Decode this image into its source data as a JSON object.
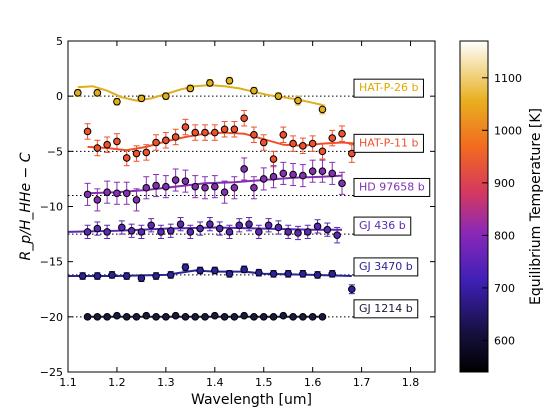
{
  "chart_data": {
    "type": "scatter",
    "xlabel": "Wavelength [um]",
    "ylabel": "R_p/H_HHe − C",
    "xlim": [
      1.1,
      1.85
    ],
    "ylim": [
      -25,
      5
    ],
    "x_ticks": [
      "1.1",
      "1.2",
      "1.3",
      "1.4",
      "1.5",
      "1.6",
      "1.7",
      "1.8"
    ],
    "y_ticks": [
      "5",
      "0",
      "−5",
      "−10",
      "−15",
      "−20",
      "−25"
    ],
    "grid": false,
    "colorbar": {
      "label": "Equilibrium Temperature [K]",
      "range": [
        540,
        1170
      ],
      "ticks": [
        "600",
        "700",
        "800",
        "900",
        "1000",
        "1100"
      ]
    },
    "series": [
      {
        "name": "HAT-P-26 b",
        "color": "#dfb01c",
        "label_color": "#e0a800",
        "baseline": 0,
        "x": [
          1.12,
          1.16,
          1.2,
          1.25,
          1.3,
          1.35,
          1.39,
          1.43,
          1.48,
          1.53,
          1.57,
          1.62
        ],
        "y": [
          0.3,
          0.3,
          -0.5,
          -0.2,
          0.0,
          0.7,
          1.2,
          1.4,
          0.5,
          0.0,
          -0.4,
          -1.2
        ],
        "err": [
          0.3,
          0.3,
          0.3,
          0.3,
          0.3,
          0.3,
          0.3,
          0.3,
          0.3,
          0.3,
          0.4,
          0.4
        ],
        "model_x": [
          1.12,
          1.15,
          1.18,
          1.21,
          1.24,
          1.27,
          1.3,
          1.33,
          1.36,
          1.39,
          1.42,
          1.45,
          1.48,
          1.51,
          1.54,
          1.57,
          1.6,
          1.62
        ],
        "model_y": [
          0.8,
          0.9,
          0.5,
          -0.1,
          -0.4,
          -0.2,
          0.2,
          0.6,
          0.9,
          1.0,
          0.9,
          0.7,
          0.4,
          0.1,
          -0.1,
          -0.3,
          -0.6,
          -0.8
        ]
      },
      {
        "name": "HAT-P-11 b",
        "color": "#f0502c",
        "label_color": "#f0502c",
        "baseline": -5,
        "x": [
          1.14,
          1.16,
          1.18,
          1.2,
          1.22,
          1.24,
          1.26,
          1.28,
          1.3,
          1.32,
          1.34,
          1.36,
          1.38,
          1.4,
          1.42,
          1.44,
          1.46,
          1.48,
          1.5,
          1.52,
          1.54,
          1.56,
          1.58,
          1.6,
          1.62,
          1.64,
          1.66,
          1.68
        ],
        "y": [
          -3.2,
          -4.7,
          -4.4,
          -4.1,
          -5.6,
          -5.2,
          -5.1,
          -4.2,
          -4.0,
          -3.7,
          -2.8,
          -3.3,
          -3.3,
          -3.3,
          -3.0,
          -3.0,
          -2.0,
          -3.5,
          -4.2,
          -5.7,
          -3.5,
          -4.3,
          -4.5,
          -4.3,
          -5.0,
          -3.8,
          -3.4,
          -5.2
        ],
        "err": [
          0.7,
          0.7,
          0.7,
          0.7,
          0.7,
          0.7,
          0.7,
          0.7,
          0.7,
          0.7,
          0.7,
          0.7,
          0.7,
          0.7,
          0.7,
          0.7,
          0.7,
          0.7,
          0.7,
          0.7,
          0.7,
          0.7,
          0.7,
          0.7,
          0.7,
          0.7,
          0.7,
          0.8
        ],
        "model_x": [
          1.14,
          1.18,
          1.22,
          1.26,
          1.3,
          1.34,
          1.38,
          1.42,
          1.46,
          1.5,
          1.54,
          1.58,
          1.62,
          1.66,
          1.69
        ],
        "model_y": [
          -4.6,
          -4.7,
          -4.9,
          -4.6,
          -4.1,
          -3.7,
          -3.4,
          -3.3,
          -3.4,
          -3.9,
          -4.4,
          -4.5,
          -4.3,
          -4.2,
          -4.3
        ]
      },
      {
        "name": "HD 97658 b",
        "color": "#8530b4",
        "label_color": "#8530b4",
        "baseline": -9,
        "x": [
          1.14,
          1.16,
          1.18,
          1.2,
          1.22,
          1.24,
          1.26,
          1.28,
          1.3,
          1.32,
          1.34,
          1.36,
          1.38,
          1.4,
          1.42,
          1.44,
          1.46,
          1.48,
          1.5,
          1.52,
          1.54,
          1.56,
          1.58,
          1.6,
          1.62,
          1.64,
          1.66
        ],
        "y": [
          -8.9,
          -9.4,
          -8.7,
          -8.8,
          -8.8,
          -9.4,
          -8.3,
          -8.1,
          -8.2,
          -7.6,
          -7.7,
          -8.2,
          -8.3,
          -8.2,
          -8.7,
          -8.3,
          -6.6,
          -8.3,
          -7.5,
          -7.3,
          -7.0,
          -7.1,
          -7.2,
          -6.8,
          -6.8,
          -7.0,
          -7.9
        ],
        "err": [
          1.0,
          1.0,
          1.0,
          1.0,
          1.0,
          1.0,
          1.0,
          1.0,
          1.0,
          1.0,
          1.0,
          1.0,
          1.0,
          1.0,
          1.0,
          1.0,
          1.0,
          1.0,
          1.0,
          1.0,
          1.0,
          1.0,
          1.0,
          1.0,
          1.0,
          1.0,
          1.0
        ],
        "model_x": [
          1.14,
          1.2,
          1.26,
          1.32,
          1.38,
          1.44,
          1.5,
          1.56,
          1.62,
          1.66
        ],
        "model_y": [
          -8.8,
          -8.7,
          -8.5,
          -8.2,
          -7.9,
          -7.8,
          -7.6,
          -7.4,
          -7.3,
          -7.2
        ]
      },
      {
        "name": "GJ 436 b",
        "color": "#5a2ab4",
        "label_color": "#5a2ab4",
        "baseline": -12.5,
        "x": [
          1.14,
          1.16,
          1.18,
          1.21,
          1.23,
          1.25,
          1.27,
          1.29,
          1.31,
          1.33,
          1.35,
          1.37,
          1.39,
          1.41,
          1.43,
          1.45,
          1.47,
          1.49,
          1.51,
          1.53,
          1.55,
          1.57,
          1.59,
          1.61,
          1.63,
          1.65
        ],
        "y": [
          -12.3,
          -12.0,
          -12.3,
          -11.9,
          -12.2,
          -12.3,
          -11.7,
          -12.3,
          -12.2,
          -11.6,
          -12.3,
          -12.0,
          -11.6,
          -12.0,
          -12.3,
          -11.7,
          -11.6,
          -12.3,
          -11.7,
          -11.9,
          -12.3,
          -12.4,
          -12.3,
          -11.8,
          -12.1,
          -12.6
        ],
        "err": [
          0.6,
          0.6,
          0.6,
          0.6,
          0.6,
          0.6,
          0.6,
          0.6,
          0.6,
          0.6,
          0.6,
          0.6,
          0.6,
          0.6,
          0.6,
          0.6,
          0.6,
          0.6,
          0.6,
          0.6,
          0.6,
          0.6,
          0.6,
          0.6,
          0.6,
          0.7
        ],
        "model_x": [
          1.1,
          1.2,
          1.3,
          1.4,
          1.5,
          1.6,
          1.66
        ],
        "model_y": [
          -12.3,
          -12.2,
          -12.0,
          -11.9,
          -12.0,
          -12.1,
          -12.1
        ]
      },
      {
        "name": "GJ 3470 b",
        "color": "#2a2498",
        "label_color": "#2a2498",
        "baseline": -16.2,
        "x": [
          1.13,
          1.16,
          1.19,
          1.22,
          1.25,
          1.28,
          1.31,
          1.34,
          1.37,
          1.4,
          1.43,
          1.46,
          1.49,
          1.52,
          1.55,
          1.58,
          1.61,
          1.64,
          1.68
        ],
        "y": [
          -16.3,
          -16.3,
          -16.2,
          -16.3,
          -16.5,
          -16.3,
          -16.2,
          -15.5,
          -15.8,
          -15.8,
          -16.1,
          -15.7,
          -16.0,
          -16.1,
          -16.1,
          -16.1,
          -16.2,
          -16.1,
          -17.5
        ],
        "err": [
          0.3,
          0.3,
          0.3,
          0.3,
          0.3,
          0.3,
          0.3,
          0.3,
          0.3,
          0.3,
          0.3,
          0.3,
          0.3,
          0.3,
          0.3,
          0.3,
          0.3,
          0.3,
          0.4
        ],
        "model_x": [
          1.1,
          1.2,
          1.3,
          1.36,
          1.4,
          1.46,
          1.5,
          1.6,
          1.68
        ],
        "model_y": [
          -16.3,
          -16.3,
          -16.2,
          -15.8,
          -15.9,
          -15.9,
          -16.1,
          -16.2,
          -16.3
        ]
      },
      {
        "name": "GJ 1214 b",
        "color": "#1a1a3c",
        "label_color": "#1a1a3c",
        "baseline": -20,
        "x": [
          1.14,
          1.16,
          1.18,
          1.2,
          1.22,
          1.24,
          1.26,
          1.28,
          1.3,
          1.32,
          1.34,
          1.36,
          1.38,
          1.4,
          1.42,
          1.44,
          1.46,
          1.48,
          1.5,
          1.52,
          1.54,
          1.56,
          1.58,
          1.6,
          1.62
        ],
        "y": [
          -20.0,
          -20.0,
          -20.0,
          -19.9,
          -20.0,
          -20.0,
          -19.9,
          -20.0,
          -20.0,
          -19.9,
          -20.0,
          -20.0,
          -20.0,
          -19.9,
          -20.0,
          -20.0,
          -19.9,
          -20.0,
          -20.0,
          -20.0,
          -19.9,
          -20.0,
          -20.0,
          -20.0,
          -20.0
        ],
        "err": [
          0.15,
          0.15,
          0.15,
          0.15,
          0.15,
          0.15,
          0.15,
          0.15,
          0.15,
          0.15,
          0.15,
          0.15,
          0.15,
          0.15,
          0.15,
          0.15,
          0.15,
          0.15,
          0.15,
          0.15,
          0.15,
          0.15,
          0.15,
          0.15,
          0.15
        ],
        "model_x": [
          1.14,
          1.62
        ],
        "model_y": [
          -20.0,
          -20.0
        ]
      }
    ]
  }
}
